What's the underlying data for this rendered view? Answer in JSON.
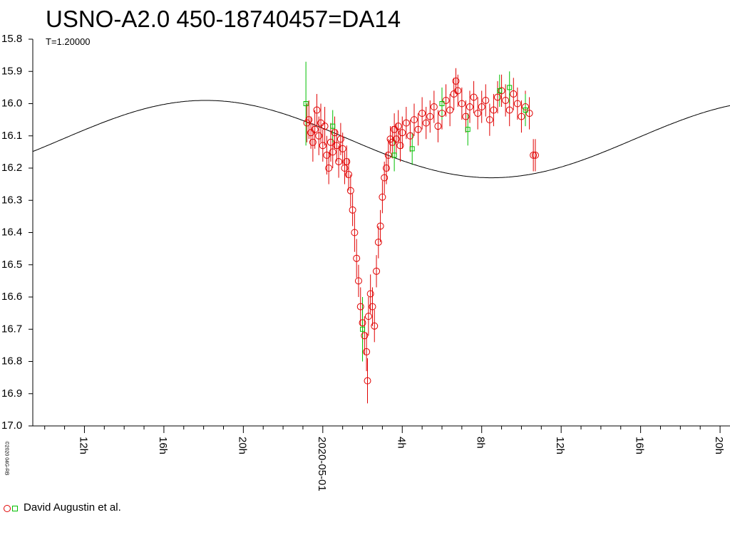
{
  "title": "USNO-A2.0 450-18740457=DA14",
  "subtitle": "T=1.20000",
  "legend_label": "David Augustin et al.",
  "copyright": "©2020 04G-RB",
  "colors": {
    "observations": "#e00000",
    "secondary": "#00c000",
    "model": "#000000",
    "axis": "#000000"
  },
  "chart_data": {
    "type": "scatter",
    "y_inverted": true,
    "ylim": [
      15.8,
      17.0
    ],
    "y_ticks": [
      "15.8",
      "15.9",
      "16.0",
      "16.1",
      "16.2",
      "16.3",
      "16.4",
      "16.5",
      "16.6",
      "16.7",
      "16.8",
      "16.9",
      "17.0"
    ],
    "xlim_hours": [
      -14.6,
      20.5
    ],
    "x_ticks": [
      {
        "h": -12,
        "label": "12h"
      },
      {
        "h": -8,
        "label": "16h"
      },
      {
        "h": -4,
        "label": "20h"
      },
      {
        "h": 0,
        "label": "2020-05-01"
      },
      {
        "h": 4,
        "label": "4h"
      },
      {
        "h": 8,
        "label": "8h"
      },
      {
        "h": 12,
        "label": "12h"
      },
      {
        "h": 16,
        "label": "16h"
      },
      {
        "h": 20,
        "label": "20h"
      }
    ],
    "model_curve": {
      "type": "sinusoid",
      "mean": 16.11,
      "amplitude": 0.12,
      "period_hours": 28.8,
      "max_brightness_at_hours": -5.9
    },
    "series": [
      {
        "name": "David Augustin et al.",
        "marker": "circle",
        "points": [
          [
            -0.8,
            16.06,
            0.06
          ],
          [
            -0.7,
            16.05,
            0.06
          ],
          [
            -0.6,
            16.09,
            0.05
          ],
          [
            -0.5,
            16.12,
            0.06
          ],
          [
            -0.4,
            16.08,
            0.06
          ],
          [
            -0.3,
            16.02,
            0.05
          ],
          [
            -0.2,
            16.1,
            0.06
          ],
          [
            -0.1,
            16.06,
            0.06
          ],
          [
            0.0,
            16.13,
            0.05
          ],
          [
            0.1,
            16.07,
            0.06
          ],
          [
            0.2,
            16.16,
            0.06
          ],
          [
            0.3,
            16.2,
            0.05
          ],
          [
            0.4,
            16.12,
            0.06
          ],
          [
            0.5,
            16.15,
            0.05
          ],
          [
            0.6,
            16.09,
            0.05
          ],
          [
            0.7,
            16.13,
            0.05
          ],
          [
            0.8,
            16.18,
            0.05
          ],
          [
            0.9,
            16.11,
            0.05
          ],
          [
            1.0,
            16.14,
            0.05
          ],
          [
            1.1,
            16.2,
            0.05
          ],
          [
            1.2,
            16.18,
            0.05
          ],
          [
            1.3,
            16.22,
            0.05
          ],
          [
            1.4,
            16.27,
            0.05
          ],
          [
            1.5,
            16.33,
            0.05
          ],
          [
            1.6,
            16.4,
            0.06
          ],
          [
            1.7,
            16.48,
            0.06
          ],
          [
            1.8,
            16.55,
            0.05
          ],
          [
            1.9,
            16.63,
            0.06
          ],
          [
            2.0,
            16.68,
            0.06
          ],
          [
            2.1,
            16.72,
            0.06
          ],
          [
            2.2,
            16.77,
            0.06
          ],
          [
            2.25,
            16.86,
            0.07
          ],
          [
            2.3,
            16.66,
            0.06
          ],
          [
            2.4,
            16.59,
            0.06
          ],
          [
            2.5,
            16.63,
            0.06
          ],
          [
            2.6,
            16.69,
            0.05
          ],
          [
            2.7,
            16.52,
            0.05
          ],
          [
            2.8,
            16.43,
            0.05
          ],
          [
            2.9,
            16.38,
            0.05
          ],
          [
            3.0,
            16.29,
            0.05
          ],
          [
            3.1,
            16.23,
            0.05
          ],
          [
            3.2,
            16.2,
            0.05
          ],
          [
            3.3,
            16.16,
            0.05
          ],
          [
            3.4,
            16.11,
            0.04
          ],
          [
            3.5,
            16.12,
            0.05
          ],
          [
            3.6,
            16.08,
            0.05
          ],
          [
            3.7,
            16.11,
            0.05
          ],
          [
            3.8,
            16.07,
            0.05
          ],
          [
            3.9,
            16.13,
            0.05
          ],
          [
            4.0,
            16.09,
            0.05
          ],
          [
            4.2,
            16.06,
            0.05
          ],
          [
            4.4,
            16.1,
            0.05
          ],
          [
            4.6,
            16.05,
            0.05
          ],
          [
            4.8,
            16.08,
            0.05
          ],
          [
            5.0,
            16.03,
            0.05
          ],
          [
            5.2,
            16.06,
            0.05
          ],
          [
            5.4,
            16.04,
            0.05
          ],
          [
            5.6,
            16.01,
            0.05
          ],
          [
            5.8,
            16.07,
            0.05
          ],
          [
            6.0,
            16.03,
            0.05
          ],
          [
            6.2,
            15.99,
            0.05
          ],
          [
            6.4,
            16.02,
            0.05
          ],
          [
            6.6,
            15.97,
            0.05
          ],
          [
            6.7,
            15.93,
            0.04
          ],
          [
            6.8,
            15.96,
            0.05
          ],
          [
            7.0,
            16.0,
            0.05
          ],
          [
            7.2,
            16.04,
            0.05
          ],
          [
            7.4,
            16.01,
            0.05
          ],
          [
            7.6,
            15.98,
            0.05
          ],
          [
            7.8,
            16.03,
            0.05
          ],
          [
            8.0,
            16.01,
            0.05
          ],
          [
            8.2,
            15.99,
            0.05
          ],
          [
            8.4,
            16.05,
            0.05
          ],
          [
            8.6,
            16.02,
            0.05
          ],
          [
            8.8,
            15.98,
            0.05
          ],
          [
            9.0,
            15.96,
            0.05
          ],
          [
            9.2,
            15.99,
            0.05
          ],
          [
            9.4,
            16.02,
            0.05
          ],
          [
            9.6,
            15.97,
            0.05
          ],
          [
            9.8,
            16.0,
            0.05
          ],
          [
            10.0,
            16.04,
            0.05
          ],
          [
            10.2,
            16.01,
            0.05
          ],
          [
            10.4,
            16.03,
            0.05
          ],
          [
            10.6,
            16.16,
            0.05
          ],
          [
            10.7,
            16.16,
            0.05
          ]
        ]
      },
      {
        "name": "",
        "marker": "square",
        "points": [
          [
            -0.85,
            16.0,
            0.13
          ],
          [
            0.5,
            16.07,
            0.05
          ],
          [
            2.0,
            16.7,
            0.1
          ],
          [
            3.6,
            16.16,
            0.05
          ],
          [
            4.5,
            16.14,
            0.05
          ],
          [
            6.0,
            16.0,
            0.05
          ],
          [
            7.3,
            16.08,
            0.05
          ],
          [
            8.9,
            15.96,
            0.05
          ],
          [
            9.4,
            15.95,
            0.05
          ],
          [
            10.2,
            16.02,
            0.05
          ]
        ]
      }
    ]
  }
}
